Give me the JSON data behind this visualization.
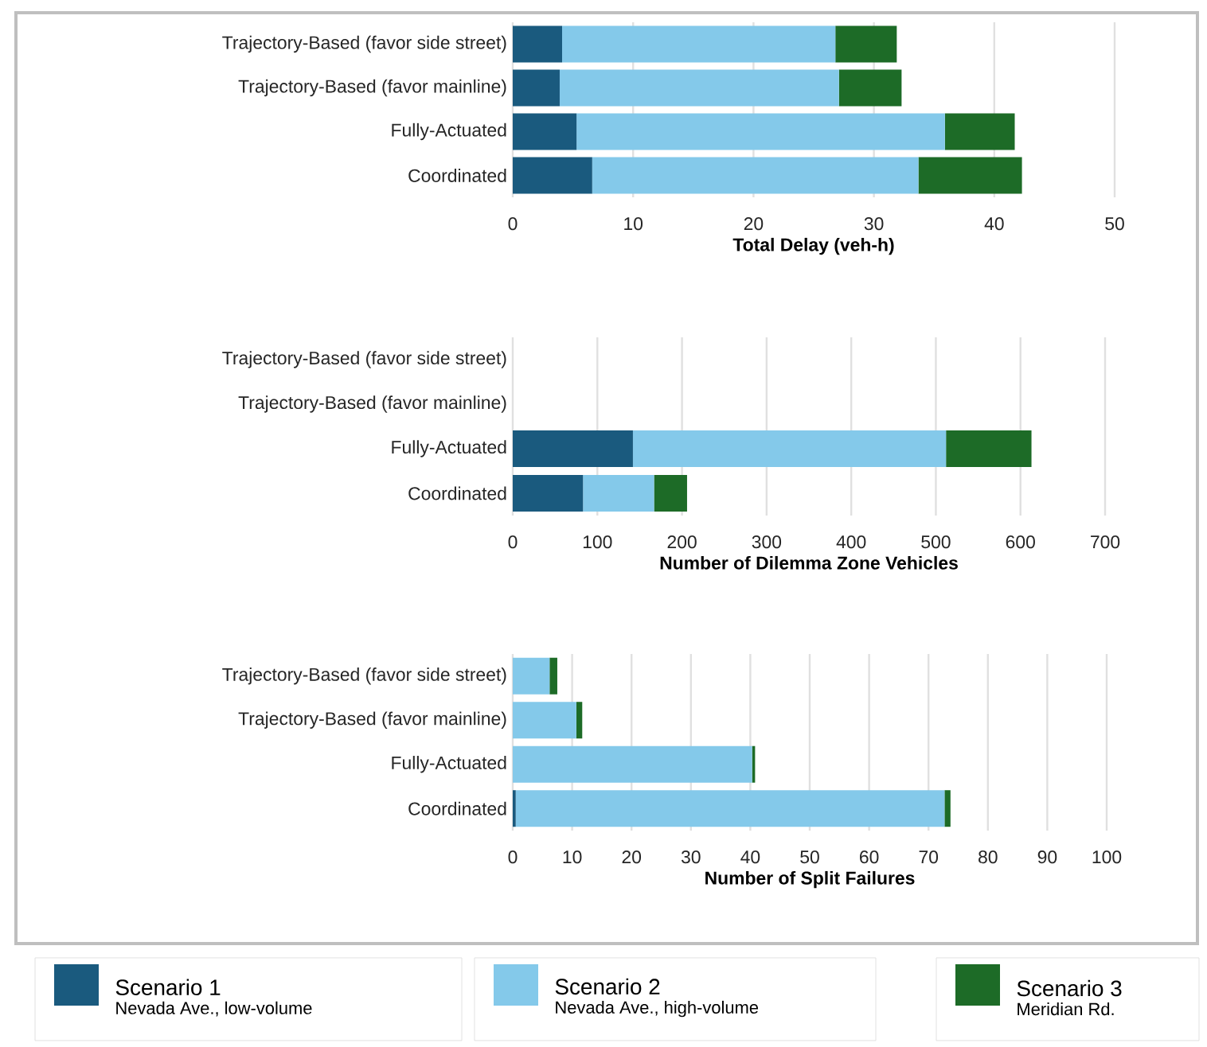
{
  "chart_data": [
    {
      "type": "bar",
      "orientation": "horizontal",
      "stacked": true,
      "xlabel": "Total Delay (veh-h)",
      "categories": [
        "Trajectory-Based (favor side street)",
        "Trajectory-Based (favor mainline)",
        "Fully-Actuated",
        "Coordinated"
      ],
      "series": [
        {
          "color": "#1a5a7e",
          "values": [
            4.1,
            3.9,
            5.3,
            6.6
          ]
        },
        {
          "color": "#84c9ea",
          "values": [
            22.7,
            23.2,
            30.6,
            27.1
          ]
        },
        {
          "color": "#1d6b27",
          "values": [
            5.1,
            5.2,
            5.8,
            8.6
          ]
        }
      ],
      "xlim": [
        0,
        50
      ],
      "xticks": [
        0,
        10,
        20,
        30,
        40,
        50
      ],
      "grid": "x"
    },
    {
      "type": "bar",
      "orientation": "horizontal",
      "stacked": true,
      "xlabel": "Number of Dilemma Zone Vehicles",
      "categories": [
        "Trajectory-Based (favor side street)",
        "Trajectory-Based (favor mainline)",
        "Fully-Actuated",
        "Coordinated"
      ],
      "series": [
        {
          "color": "#1a5a7e",
          "values": [
            null,
            null,
            142,
            83
          ]
        },
        {
          "color": "#84c9ea",
          "values": [
            null,
            null,
            370,
            84
          ]
        },
        {
          "color": "#1d6b27",
          "values": [
            null,
            null,
            101,
            39
          ]
        }
      ],
      "xlim": [
        0,
        700
      ],
      "xticks": [
        0,
        100,
        200,
        300,
        400,
        500,
        600,
        700
      ],
      "grid": "x"
    },
    {
      "type": "bar",
      "orientation": "horizontal",
      "stacked": true,
      "xlabel": "Number of Split Failures",
      "categories": [
        "Trajectory-Based (favor side street)",
        "Trajectory-Based (favor mainline)",
        "Fully-Actuated",
        "Coordinated"
      ],
      "series": [
        {
          "name": "Scenario 1",
          "color": "#1a5a7e",
          "values": [
            0,
            0,
            0,
            0.5
          ]
        },
        {
          "name": "Scenario 2",
          "color": "#84c9ea",
          "values": [
            6.2,
            10.7,
            40.3,
            72.2
          ]
        },
        {
          "name": "Scenario 3",
          "color": "#1d6b27",
          "values": [
            1.3,
            1.0,
            0.5,
            1.0
          ]
        }
      ],
      "xlim": [
        0,
        100
      ],
      "xticks": [
        0,
        10,
        20,
        30,
        40,
        50,
        60,
        70,
        80,
        90,
        100
      ],
      "grid": "x",
      "legend": "bottom",
      "annotations": [
        "Nevada Ave., low-volume",
        "Nevada Ave., high-volume",
        "Meridian Rd."
      ]
    }
  ]
}
